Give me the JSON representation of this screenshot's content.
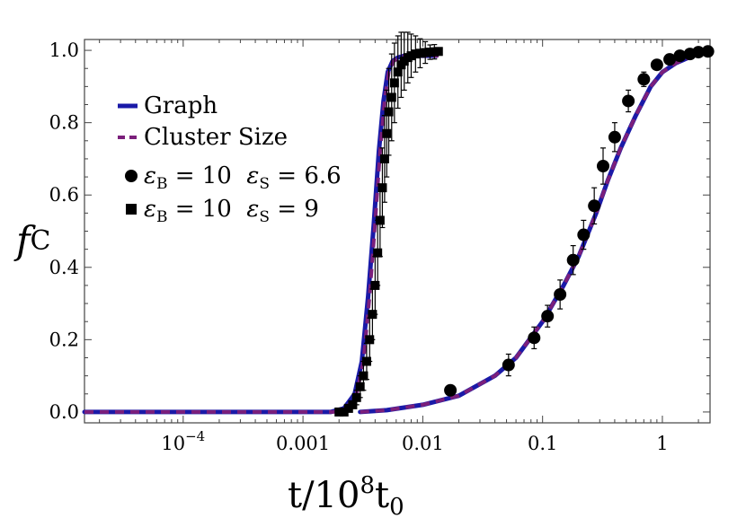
{
  "chart_data": {
    "type": "line",
    "x_scale": "log",
    "xlim": [
      1.5e-05,
      2.5
    ],
    "ylim": [
      -0.03,
      1.03
    ],
    "ylabel": "f",
    "ylabel_sub": "C",
    "xlabel_prefix": "t/10",
    "xlabel_sup": "8",
    "xlabel_t": "t",
    "xlabel_sub": "0",
    "x_ticks": [
      {
        "value": 0.0001,
        "label": "10",
        "sup": "−4"
      },
      {
        "value": 0.001,
        "label": "0.001",
        "sup": ""
      },
      {
        "value": 0.01,
        "label": "0.01",
        "sup": ""
      },
      {
        "value": 0.1,
        "label": "0.1",
        "sup": ""
      },
      {
        "value": 1,
        "label": "1",
        "sup": ""
      }
    ],
    "y_ticks": [
      {
        "value": 0.0,
        "label": "0.0"
      },
      {
        "value": 0.2,
        "label": "0.2"
      },
      {
        "value": 0.4,
        "label": "0.4"
      },
      {
        "value": 0.6,
        "label": "0.6"
      },
      {
        "value": 0.8,
        "label": "0.8"
      },
      {
        "value": 1.0,
        "label": "1.0"
      }
    ],
    "legend": {
      "position": "top-left",
      "entries": [
        {
          "marker": "solid-line",
          "color": "#1a1aa8",
          "text": "Graph"
        },
        {
          "marker": "dashed-line",
          "color": "#7b1f7b",
          "text": "Cluster Size"
        },
        {
          "marker": "circle",
          "color": "#000000",
          "eps_b": "ε",
          "eps_b_sub": "B",
          "eps_b_val": " = 10  ",
          "eps_s": "ε",
          "eps_s_sub": "S",
          "eps_s_val": " = 6.6"
        },
        {
          "marker": "square",
          "color": "#000000",
          "eps_b": "ε",
          "eps_b_sub": "B",
          "eps_b_val": " = 10  ",
          "eps_s": "ε",
          "eps_s_sub": "S",
          "eps_s_val": " = 9"
        }
      ]
    },
    "series": [
      {
        "name": "Graph (εS = 9)",
        "style": "solid",
        "color": "#1a1aa8",
        "x": [
          1.5e-05,
          0.0017,
          0.0022,
          0.0027,
          0.0031,
          0.0035,
          0.0039,
          0.0043,
          0.0047,
          0.0051,
          0.0056,
          0.0062,
          0.007,
          0.0085,
          0.01,
          0.013
        ],
        "y": [
          0.0,
          0.0,
          0.01,
          0.05,
          0.14,
          0.32,
          0.52,
          0.72,
          0.86,
          0.94,
          0.97,
          0.98,
          0.985,
          0.985,
          0.985,
          0.985
        ]
      },
      {
        "name": "Cluster Size (εS = 9)",
        "style": "dashed",
        "color": "#7b1f7b",
        "x": [
          1.5e-05,
          0.0018,
          0.0023,
          0.0028,
          0.0032,
          0.0036,
          0.004,
          0.0044,
          0.0048,
          0.0052,
          0.0057,
          0.0063,
          0.0072,
          0.0087,
          0.0105,
          0.0135
        ],
        "y": [
          0.0,
          0.0,
          0.01,
          0.05,
          0.14,
          0.32,
          0.52,
          0.72,
          0.86,
          0.94,
          0.97,
          0.98,
          0.985,
          0.985,
          0.985,
          0.985
        ]
      },
      {
        "name": "Graph (εS = 6.6)",
        "style": "solid",
        "color": "#1a1aa8",
        "x": [
          0.003,
          0.005,
          0.01,
          0.02,
          0.04,
          0.06,
          0.1,
          0.15,
          0.2,
          0.28,
          0.35,
          0.45,
          0.6,
          0.8,
          1.0,
          1.3,
          1.8,
          2.5
        ],
        "y": [
          0.0,
          0.005,
          0.02,
          0.045,
          0.1,
          0.15,
          0.25,
          0.35,
          0.43,
          0.55,
          0.64,
          0.73,
          0.82,
          0.9,
          0.94,
          0.965,
          0.985,
          0.995
        ]
      },
      {
        "name": "Cluster Size (εS = 6.6)",
        "style": "dashed",
        "color": "#7b1f7b",
        "x": [
          0.003,
          0.005,
          0.01,
          0.02,
          0.04,
          0.06,
          0.1,
          0.15,
          0.2,
          0.28,
          0.35,
          0.45,
          0.6,
          0.8,
          1.0,
          1.3,
          1.8,
          2.5
        ],
        "y": [
          0.0,
          0.005,
          0.02,
          0.045,
          0.1,
          0.15,
          0.25,
          0.35,
          0.43,
          0.55,
          0.64,
          0.73,
          0.82,
          0.9,
          0.94,
          0.965,
          0.985,
          0.995
        ]
      },
      {
        "name": "εB = 10 εS = 6.6",
        "style": "circle",
        "color": "#000000",
        "x": [
          0.017,
          0.052,
          0.085,
          0.11,
          0.14,
          0.18,
          0.22,
          0.27,
          0.32,
          0.4,
          0.52,
          0.7,
          0.9,
          1.15,
          1.4,
          1.7,
          2.0,
          2.4
        ],
        "y": [
          0.06,
          0.13,
          0.205,
          0.265,
          0.325,
          0.42,
          0.49,
          0.57,
          0.68,
          0.76,
          0.86,
          0.92,
          0.96,
          0.975,
          0.985,
          0.99,
          0.995,
          0.997
        ],
        "yerr": [
          0.0,
          0.03,
          0.03,
          0.03,
          0.04,
          0.04,
          0.04,
          0.05,
          0.05,
          0.04,
          0.03,
          0.02,
          0.01,
          0.01,
          0.0,
          0.0,
          0.0,
          0.0
        ]
      },
      {
        "name": "εB = 10 εS = 9",
        "style": "square",
        "color": "#000000",
        "x": [
          0.002,
          0.0022,
          0.0024,
          0.0026,
          0.0028,
          0.003,
          0.0032,
          0.0034,
          0.0036,
          0.0038,
          0.004,
          0.0042,
          0.0044,
          0.0046,
          0.0048,
          0.005,
          0.0052,
          0.0055,
          0.0058,
          0.0062,
          0.0066,
          0.007,
          0.0075,
          0.008,
          0.0087,
          0.0095,
          0.0105,
          0.0115,
          0.0125,
          0.0135
        ],
        "y": [
          0.0,
          0.0,
          0.01,
          0.02,
          0.04,
          0.07,
          0.1,
          0.14,
          0.2,
          0.27,
          0.35,
          0.44,
          0.53,
          0.62,
          0.7,
          0.77,
          0.83,
          0.87,
          0.91,
          0.94,
          0.96,
          0.97,
          0.98,
          0.985,
          0.99,
          0.992,
          0.994,
          0.995,
          0.996,
          0.997
        ],
        "yerr": [
          0.0,
          0.0,
          0.01,
          0.01,
          0.02,
          0.03,
          0.04,
          0.05,
          0.06,
          0.07,
          0.08,
          0.09,
          0.1,
          0.11,
          0.12,
          0.12,
          0.12,
          0.12,
          0.11,
          0.1,
          0.09,
          0.08,
          0.07,
          0.06,
          0.05,
          0.04,
          0.03,
          0.02,
          0.02,
          0.01
        ]
      }
    ]
  }
}
